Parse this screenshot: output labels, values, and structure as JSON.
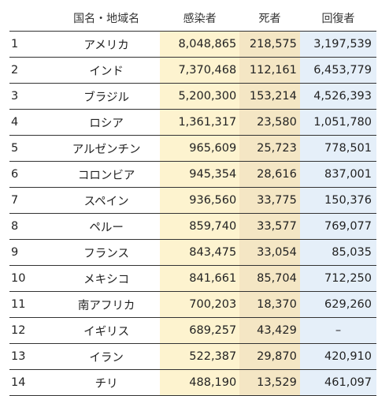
{
  "table": {
    "headers": {
      "rank": "",
      "country": "国名・地域名",
      "infected": "感染者",
      "deaths": "死者",
      "recovered": "回復者"
    },
    "rows": [
      {
        "rank": "1",
        "country": "アメリカ",
        "infected": "8,048,865",
        "deaths": "218,575",
        "recovered": "3,197,539"
      },
      {
        "rank": "2",
        "country": "インド",
        "infected": "7,370,468",
        "deaths": "112,161",
        "recovered": "6,453,779"
      },
      {
        "rank": "3",
        "country": "ブラジル",
        "infected": "5,200,300",
        "deaths": "153,214",
        "recovered": "4,526,393"
      },
      {
        "rank": "4",
        "country": "ロシア",
        "infected": "1,361,317",
        "deaths": "23,580",
        "recovered": "1,051,780"
      },
      {
        "rank": "5",
        "country": "アルゼンチン",
        "infected": "965,609",
        "deaths": "25,723",
        "recovered": "778,501"
      },
      {
        "rank": "6",
        "country": "コロンビア",
        "infected": "945,354",
        "deaths": "28,616",
        "recovered": "837,001"
      },
      {
        "rank": "7",
        "country": "スペイン",
        "infected": "936,560",
        "deaths": "33,775",
        "recovered": "150,376"
      },
      {
        "rank": "8",
        "country": "ペルー",
        "infected": "859,740",
        "deaths": "33,577",
        "recovered": "769,077"
      },
      {
        "rank": "9",
        "country": "フランス",
        "infected": "843,475",
        "deaths": "33,054",
        "recovered": "85,035"
      },
      {
        "rank": "10",
        "country": "メキシコ",
        "infected": "841,661",
        "deaths": "85,704",
        "recovered": "712,250"
      },
      {
        "rank": "11",
        "country": "南アフリカ",
        "infected": "700,203",
        "deaths": "18,370",
        "recovered": "629,260"
      },
      {
        "rank": "12",
        "country": "イギリス",
        "infected": "689,257",
        "deaths": "43,429",
        "recovered": "–"
      },
      {
        "rank": "13",
        "country": "イラン",
        "infected": "522,387",
        "deaths": "29,870",
        "recovered": "420,910"
      },
      {
        "rank": "14",
        "country": "チリ",
        "infected": "488,190",
        "deaths": "13,529",
        "recovered": "461,097"
      }
    ]
  },
  "colors": {
    "infected_bg": "#fdf3cf",
    "deaths_bg": "#f4e6c4",
    "recovered_bg": "#e5eff9"
  }
}
